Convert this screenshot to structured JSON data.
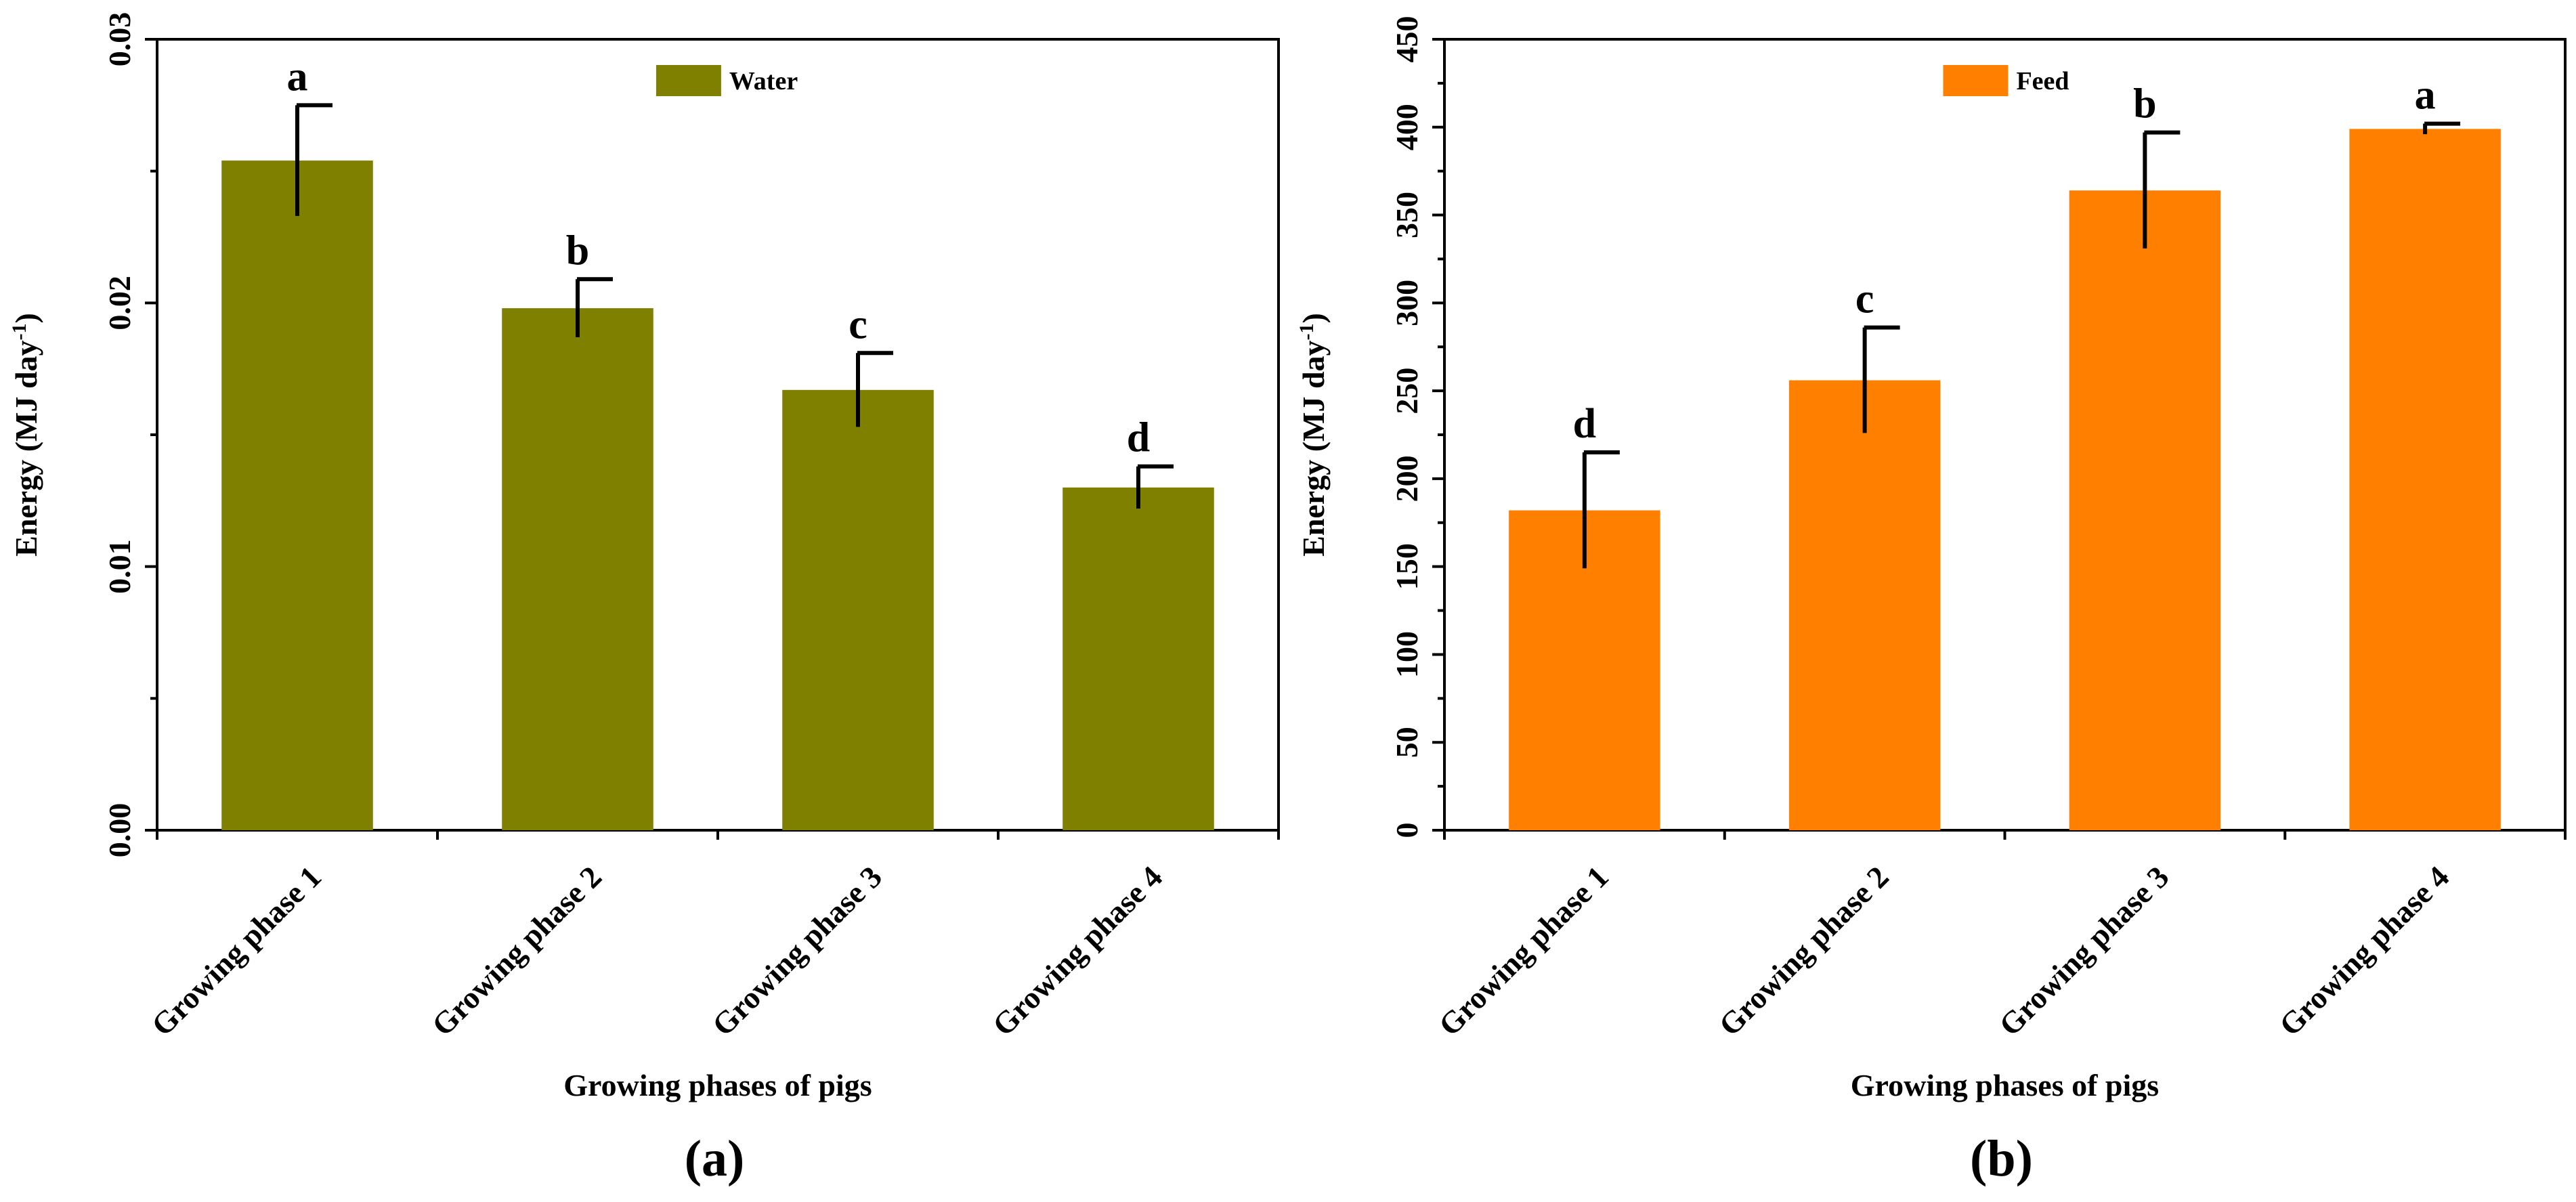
{
  "figure": {
    "panel_labels": [
      "(a)",
      "(b)"
    ]
  },
  "chart_data": [
    {
      "type": "bar",
      "panel": "(a)",
      "title": "",
      "legend": "Water",
      "legend_position": "top-center",
      "color": "#808000",
      "xlabel": "Growing phases of pigs",
      "ylabel": "Energy (MJ day",
      "ylabel_sup": "-1",
      "ylabel_suffix": ")",
      "categories": [
        "Growing phase 1",
        "Growing phase 2",
        "Growing phase 3",
        "Growing phase 4"
      ],
      "values": [
        0.0254,
        0.0198,
        0.0167,
        0.013
      ],
      "errors": [
        0.0021,
        0.0011,
        0.0014,
        0.0008
      ],
      "significance": [
        "a",
        "b",
        "c",
        "d"
      ],
      "ylim": [
        0,
        0.03
      ],
      "yticks": [
        0.0,
        0.01,
        0.02,
        0.03
      ],
      "ytick_labels": [
        "0.00",
        "0.01",
        "0.02",
        "0.03"
      ],
      "minor_ytick_step": 0.005,
      "grid": false
    },
    {
      "type": "bar",
      "panel": "(b)",
      "title": "",
      "legend": "Feed",
      "legend_position": "top-center",
      "color": "#FF8000",
      "xlabel": "Growing phases of pigs",
      "ylabel": "Energy (MJ day",
      "ylabel_sup": "-1",
      "ylabel_suffix": ")",
      "categories": [
        "Growing phase 1",
        "Growing phase 2",
        "Growing phase 3",
        "Growing phase 4"
      ],
      "values": [
        182,
        256,
        364,
        399
      ],
      "errors": [
        33,
        30,
        33,
        3
      ],
      "significance": [
        "d",
        "c",
        "b",
        "a"
      ],
      "ylim": [
        0,
        450
      ],
      "yticks": [
        0,
        50,
        100,
        150,
        200,
        250,
        300,
        350,
        400,
        450
      ],
      "ytick_labels": [
        "0",
        "50",
        "100",
        "150",
        "200",
        "250",
        "300",
        "350",
        "400",
        "450"
      ],
      "minor_ytick_step": 25,
      "grid": false
    }
  ]
}
